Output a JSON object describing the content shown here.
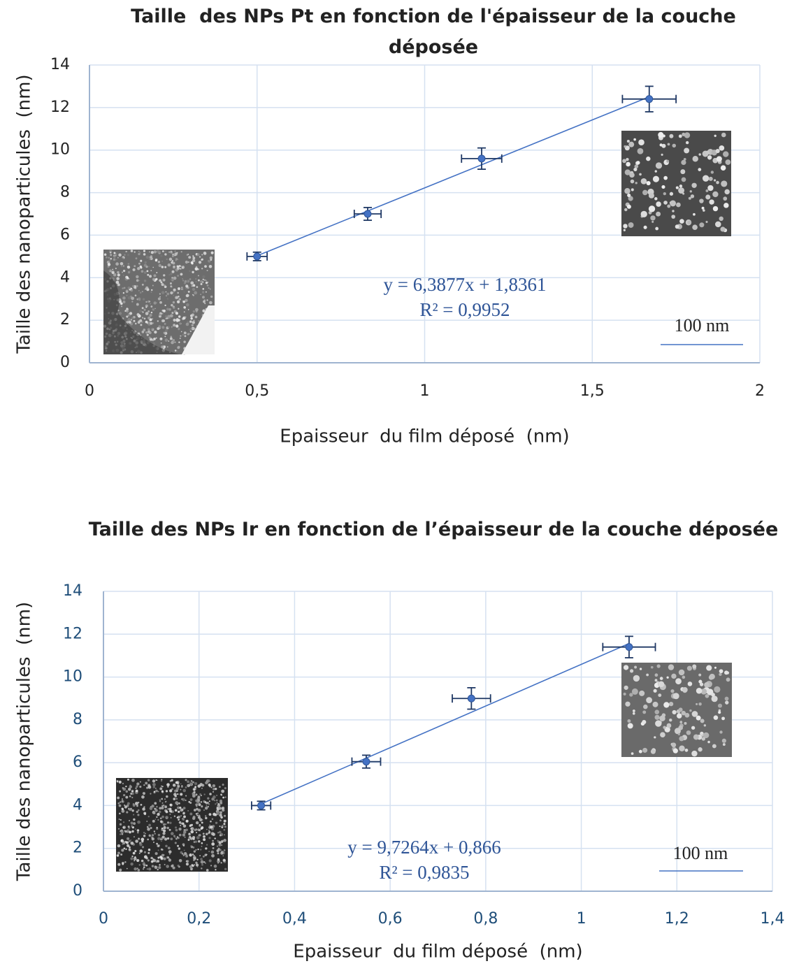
{
  "chart_data": [
    {
      "type": "scatter",
      "title": "Taille  des NPs Pt en fonction de l'épaisseur de la couche déposée",
      "x_label": "Epaisseur  du film déposé  (nm)",
      "y_label": "Taille des nanoparticules  (nm)",
      "x": [
        0.5,
        0.83,
        1.17,
        1.67
      ],
      "series": [
        {
          "color": "#4472c4",
          "values": [
            5.0,
            7.0,
            9.6,
            12.4
          ],
          "x_err": [
            0.03,
            0.04,
            0.06,
            0.08
          ],
          "y_err": [
            0.2,
            0.3,
            0.5,
            0.6
          ]
        }
      ],
      "trendline": {
        "slope": 6.3877,
        "intercept": 1.8361,
        "color": "#4472c4",
        "equation": "y = 6,3877x + 1,8361",
        "r2": "R² = 0,9952"
      },
      "scale_bar": "100 nm",
      "xlim": [
        0,
        2
      ],
      "xticks": [
        0,
        {
          "value": 0.5,
          "label": "0,5"
        },
        1,
        {
          "value": 1.5,
          "label": "1,5"
        },
        2
      ],
      "ylim": [
        0,
        14
      ],
      "yticks": [
        0,
        2,
        4,
        6,
        8,
        10,
        12,
        14
      ],
      "grid": true,
      "tick_color": "#222222"
    },
    {
      "type": "scatter",
      "title": "Taille des NPs Ir en fonction de l’épaisseur de la couche déposée",
      "x_label": "Epaisseur  du film déposé  (nm)",
      "y_label": "Taille des nanoparticules  (nm)",
      "x": [
        0.33,
        0.55,
        0.77,
        1.1
      ],
      "series": [
        {
          "color": "#4472c4",
          "values": [
            4.0,
            6.05,
            9.0,
            11.4
          ],
          "x_err": [
            0.02,
            0.03,
            0.04,
            0.055
          ],
          "y_err": [
            0.2,
            0.3,
            0.5,
            0.5
          ]
        }
      ],
      "trendline": {
        "slope": 9.7264,
        "intercept": 0.866,
        "color": "#4472c4",
        "equation": "y = 9,7264x + 0,866",
        "r2": "R² = 0,9835"
      },
      "scale_bar": "100 nm",
      "xlim": [
        0,
        1.4
      ],
      "xticks": [
        0,
        {
          "value": 0.2,
          "label": "0,2"
        },
        {
          "value": 0.4,
          "label": "0,4"
        },
        {
          "value": 0.6,
          "label": "0,6"
        },
        {
          "value": 0.8,
          "label": "0,8"
        },
        1,
        {
          "value": 1.2,
          "label": "1,2"
        },
        {
          "value": 1.4,
          "label": "1,4"
        }
      ],
      "ylim": [
        0,
        14
      ],
      "yticks": [
        0,
        2,
        4,
        6,
        8,
        10,
        12,
        14
      ],
      "grid": true,
      "tick_color": "#1f4e79"
    }
  ]
}
